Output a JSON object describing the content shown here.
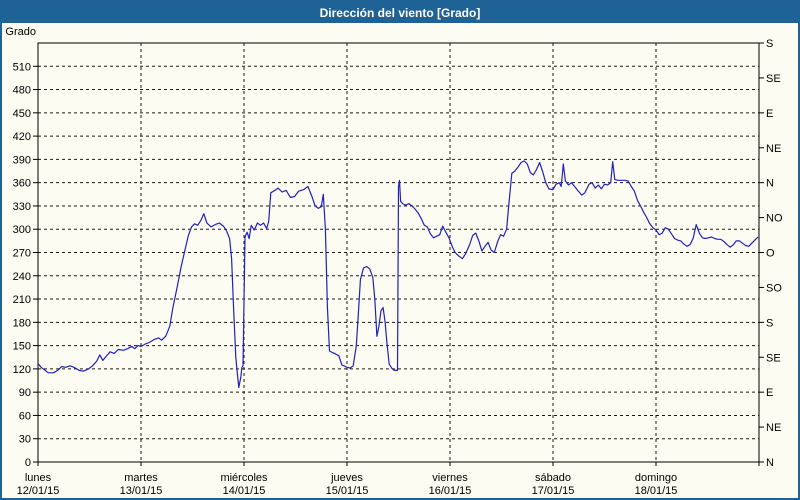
{
  "window": {
    "title": "Dirección del viento [Grado]",
    "title_bar_color": "#1e6296",
    "border_color": "#1e6296",
    "background_color": "#fcfcf2"
  },
  "chart_data": {
    "type": "line",
    "title": "Dirección del viento [Grado]",
    "ylabel": "Grado",
    "ylim": [
      0,
      540
    ],
    "y_tick_step": 30,
    "y_ticks": [
      0,
      30,
      60,
      90,
      120,
      150,
      180,
      210,
      240,
      270,
      300,
      330,
      360,
      390,
      420,
      450,
      480,
      510
    ],
    "right_axis_labels": [
      {
        "value": 0,
        "label": "N"
      },
      {
        "value": 45,
        "label": "NE"
      },
      {
        "value": 90,
        "label": "E"
      },
      {
        "value": 135,
        "label": "SE"
      },
      {
        "value": 180,
        "label": "S"
      },
      {
        "value": 225,
        "label": "SO"
      },
      {
        "value": 270,
        "label": "O"
      },
      {
        "value": 315,
        "label": "NO"
      },
      {
        "value": 360,
        "label": "N"
      },
      {
        "value": 405,
        "label": "NE"
      },
      {
        "value": 450,
        "label": "E"
      },
      {
        "value": 495,
        "label": "SE"
      },
      {
        "value": 540,
        "label": "S"
      }
    ],
    "x_days": [
      {
        "name": "lunes",
        "date": "12/01/15"
      },
      {
        "name": "martes",
        "date": "13/01/15"
      },
      {
        "name": "miércoles",
        "date": "14/01/15"
      },
      {
        "name": "jueves",
        "date": "15/01/15"
      },
      {
        "name": "viernes",
        "date": "16/01/15"
      },
      {
        "name": "sábado",
        "date": "17/01/15"
      },
      {
        "name": "domingo",
        "date": "18/01/15"
      }
    ],
    "grid": "dashed",
    "legend": "none",
    "line_color": "#2121bd",
    "series": [
      {
        "name": "Dirección del viento",
        "units": "Grado",
        "points": [
          [
            0.0,
            127
          ],
          [
            0.03,
            122
          ],
          [
            0.07,
            118
          ],
          [
            0.1,
            115
          ],
          [
            0.15,
            115
          ],
          [
            0.19,
            118
          ],
          [
            0.23,
            123
          ],
          [
            0.27,
            122
          ],
          [
            0.31,
            124
          ],
          [
            0.35,
            122
          ],
          [
            0.4,
            118
          ],
          [
            0.44,
            117
          ],
          [
            0.49,
            120
          ],
          [
            0.53,
            124
          ],
          [
            0.57,
            130
          ],
          [
            0.6,
            138
          ],
          [
            0.63,
            131
          ],
          [
            0.66,
            136
          ],
          [
            0.7,
            142
          ],
          [
            0.74,
            140
          ],
          [
            0.78,
            145
          ],
          [
            0.83,
            144
          ],
          [
            0.87,
            146
          ],
          [
            0.91,
            149
          ],
          [
            0.94,
            146
          ],
          [
            0.97,
            150
          ],
          [
            1.0,
            149
          ],
          [
            1.04,
            152
          ],
          [
            1.08,
            154
          ],
          [
            1.13,
            158
          ],
          [
            1.17,
            160
          ],
          [
            1.2,
            157
          ],
          [
            1.24,
            162
          ],
          [
            1.28,
            175
          ],
          [
            1.31,
            199
          ],
          [
            1.35,
            225
          ],
          [
            1.39,
            252
          ],
          [
            1.43,
            275
          ],
          [
            1.46,
            292
          ],
          [
            1.49,
            303
          ],
          [
            1.52,
            307
          ],
          [
            1.55,
            305
          ],
          [
            1.58,
            311
          ],
          [
            1.61,
            320
          ],
          [
            1.64,
            308
          ],
          [
            1.68,
            303
          ],
          [
            1.72,
            306
          ],
          [
            1.76,
            308
          ],
          [
            1.8,
            304
          ],
          [
            1.83,
            298
          ],
          [
            1.86,
            288
          ],
          [
            1.88,
            262
          ],
          [
            1.9,
            195
          ],
          [
            1.92,
            135
          ],
          [
            1.94,
            108
          ],
          [
            1.95,
            96
          ],
          [
            1.97,
            110
          ],
          [
            1.98,
            122
          ],
          [
            1.99,
            124
          ],
          [
            2.01,
            290
          ],
          [
            2.03,
            296
          ],
          [
            2.05,
            288
          ],
          [
            2.07,
            305
          ],
          [
            2.1,
            299
          ],
          [
            2.13,
            308
          ],
          [
            2.16,
            305
          ],
          [
            2.19,
            308
          ],
          [
            2.22,
            301
          ],
          [
            2.24,
            310
          ],
          [
            2.26,
            347
          ],
          [
            2.3,
            350
          ],
          [
            2.33,
            353
          ],
          [
            2.37,
            348
          ],
          [
            2.41,
            350
          ],
          [
            2.45,
            341
          ],
          [
            2.49,
            342
          ],
          [
            2.53,
            349
          ],
          [
            2.58,
            351
          ],
          [
            2.62,
            355
          ],
          [
            2.66,
            342
          ],
          [
            2.69,
            330
          ],
          [
            2.72,
            327
          ],
          [
            2.75,
            329
          ],
          [
            2.77,
            345
          ],
          [
            2.79,
            300
          ],
          [
            2.81,
            200
          ],
          [
            2.83,
            143
          ],
          [
            2.86,
            141
          ],
          [
            2.89,
            139
          ],
          [
            2.92,
            137
          ],
          [
            2.95,
            125
          ],
          [
            3.0,
            122
          ],
          [
            3.03,
            121
          ],
          [
            3.06,
            124
          ],
          [
            3.09,
            150
          ],
          [
            3.11,
            190
          ],
          [
            3.13,
            235
          ],
          [
            3.16,
            250
          ],
          [
            3.19,
            252
          ],
          [
            3.22,
            249
          ],
          [
            3.25,
            238
          ],
          [
            3.27,
            210
          ],
          [
            3.29,
            162
          ],
          [
            3.31,
            175
          ],
          [
            3.33,
            195
          ],
          [
            3.35,
            199
          ],
          [
            3.37,
            180
          ],
          [
            3.39,
            150
          ],
          [
            3.41,
            126
          ],
          [
            3.44,
            120
          ],
          [
            3.46,
            118
          ],
          [
            3.49,
            118
          ],
          [
            3.5,
            355
          ],
          [
            3.51,
            363
          ],
          [
            3.52,
            336
          ],
          [
            3.54,
            333
          ],
          [
            3.57,
            331
          ],
          [
            3.6,
            333
          ],
          [
            3.63,
            330
          ],
          [
            3.66,
            326
          ],
          [
            3.69,
            321
          ],
          [
            3.72,
            314
          ],
          [
            3.75,
            305
          ],
          [
            3.78,
            303
          ],
          [
            3.81,
            294
          ],
          [
            3.84,
            289
          ],
          [
            3.87,
            291
          ],
          [
            3.9,
            293
          ],
          [
            3.93,
            304
          ],
          [
            3.96,
            296
          ],
          [
            3.99,
            289
          ],
          [
            4.02,
            278
          ],
          [
            4.05,
            270
          ],
          [
            4.08,
            266
          ],
          [
            4.12,
            262
          ],
          [
            4.15,
            268
          ],
          [
            4.19,
            280
          ],
          [
            4.22,
            292
          ],
          [
            4.25,
            295
          ],
          [
            4.28,
            285
          ],
          [
            4.31,
            272
          ],
          [
            4.34,
            278
          ],
          [
            4.37,
            283
          ],
          [
            4.4,
            273
          ],
          [
            4.43,
            270
          ],
          [
            4.46,
            283
          ],
          [
            4.49,
            293
          ],
          [
            4.52,
            291
          ],
          [
            4.55,
            300
          ],
          [
            4.57,
            330
          ],
          [
            4.6,
            372
          ],
          [
            4.63,
            375
          ],
          [
            4.66,
            380
          ],
          [
            4.69,
            386
          ],
          [
            4.72,
            388
          ],
          [
            4.75,
            384
          ],
          [
            4.78,
            373
          ],
          [
            4.81,
            370
          ],
          [
            4.84,
            377
          ],
          [
            4.87,
            386
          ],
          [
            4.9,
            374
          ],
          [
            4.93,
            360
          ],
          [
            4.96,
            352
          ],
          [
            5.0,
            351
          ],
          [
            5.03,
            358
          ],
          [
            5.06,
            360
          ],
          [
            5.08,
            355
          ],
          [
            5.1,
            384
          ],
          [
            5.12,
            362
          ],
          [
            5.15,
            357
          ],
          [
            5.18,
            360
          ],
          [
            5.21,
            355
          ],
          [
            5.24,
            350
          ],
          [
            5.28,
            344
          ],
          [
            5.31,
            347
          ],
          [
            5.35,
            358
          ],
          [
            5.38,
            360
          ],
          [
            5.41,
            353
          ],
          [
            5.44,
            357
          ],
          [
            5.47,
            352
          ],
          [
            5.5,
            358
          ],
          [
            5.53,
            357
          ],
          [
            5.56,
            360
          ],
          [
            5.58,
            387
          ],
          [
            5.6,
            364
          ],
          [
            5.63,
            363
          ],
          [
            5.67,
            363
          ],
          [
            5.7,
            363
          ],
          [
            5.73,
            362
          ],
          [
            5.76,
            355
          ],
          [
            5.79,
            349
          ],
          [
            5.82,
            337
          ],
          [
            5.85,
            330
          ],
          [
            5.88,
            322
          ],
          [
            5.91,
            315
          ],
          [
            5.94,
            307
          ],
          [
            5.97,
            302
          ],
          [
            6.0,
            299
          ],
          [
            6.03,
            293
          ],
          [
            6.06,
            295
          ],
          [
            6.09,
            302
          ],
          [
            6.12,
            300
          ],
          [
            6.15,
            294
          ],
          [
            6.18,
            288
          ],
          [
            6.21,
            286
          ],
          [
            6.24,
            285
          ],
          [
            6.27,
            281
          ],
          [
            6.3,
            278
          ],
          [
            6.33,
            280
          ],
          [
            6.36,
            288
          ],
          [
            6.39,
            306
          ],
          [
            6.42,
            295
          ],
          [
            6.45,
            289
          ],
          [
            6.48,
            288
          ],
          [
            6.51,
            289
          ],
          [
            6.54,
            290
          ],
          [
            6.57,
            288
          ],
          [
            6.6,
            287
          ],
          [
            6.63,
            287
          ],
          [
            6.66,
            284
          ],
          [
            6.69,
            280
          ],
          [
            6.72,
            277
          ],
          [
            6.75,
            280
          ],
          [
            6.78,
            285
          ],
          [
            6.81,
            285
          ],
          [
            6.84,
            282
          ],
          [
            6.87,
            279
          ],
          [
            6.9,
            278
          ],
          [
            6.93,
            282
          ],
          [
            6.96,
            286
          ],
          [
            6.99,
            290
          ]
        ]
      }
    ]
  }
}
